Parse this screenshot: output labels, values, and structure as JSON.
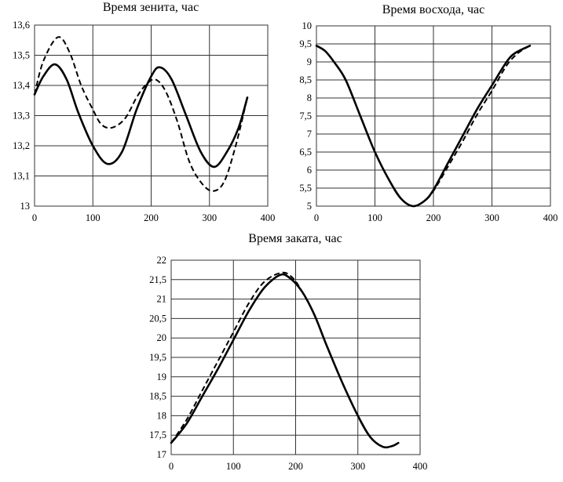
{
  "chart_data": [
    {
      "type": "line",
      "title": "Время зенита, час",
      "xlabel": "",
      "ylabel": "",
      "xlim": [
        0,
        400
      ],
      "ylim": [
        13,
        13.6
      ],
      "xticks": [
        "0",
        "100",
        "200",
        "300",
        "400"
      ],
      "yticks": [
        "13",
        "13,1",
        "13,2",
        "13,3",
        "13,4",
        "13,5",
        "13,6"
      ],
      "grid": true,
      "series": [
        {
          "name": "solid",
          "style": "solid",
          "x": [
            0,
            15,
            35,
            55,
            75,
            100,
            125,
            150,
            175,
            200,
            215,
            235,
            260,
            285,
            308,
            330,
            350,
            365
          ],
          "y": [
            13.37,
            13.43,
            13.47,
            13.42,
            13.31,
            13.2,
            13.14,
            13.18,
            13.32,
            13.43,
            13.46,
            13.42,
            13.3,
            13.18,
            13.13,
            13.18,
            13.26,
            13.36
          ]
        },
        {
          "name": "dashed",
          "style": "dashed",
          "x": [
            0,
            15,
            40,
            60,
            80,
            100,
            115,
            133,
            155,
            175,
            190,
            207,
            225,
            245,
            265,
            285,
            305,
            325,
            345,
            365
          ],
          "y": [
            13.37,
            13.48,
            13.56,
            13.51,
            13.4,
            13.32,
            13.27,
            13.26,
            13.29,
            13.36,
            13.4,
            13.42,
            13.38,
            13.28,
            13.15,
            13.08,
            13.05,
            13.08,
            13.2,
            13.36
          ]
        }
      ]
    },
    {
      "type": "line",
      "title": "Время восхода, час",
      "xlabel": "",
      "ylabel": "",
      "xlim": [
        0,
        400
      ],
      "ylim": [
        5,
        10
      ],
      "xticks": [
        "0",
        "100",
        "200",
        "300",
        "400"
      ],
      "yticks": [
        "5",
        "5,5",
        "6",
        "6,5",
        "7",
        "7,5",
        "8",
        "8,5",
        "9",
        "9,5",
        "10"
      ],
      "grid": true,
      "series": [
        {
          "name": "solid",
          "style": "solid",
          "x": [
            0,
            15,
            30,
            50,
            75,
            100,
            125,
            145,
            165,
            185,
            200,
            225,
            250,
            275,
            300,
            325,
            340,
            365
          ],
          "y": [
            9.45,
            9.3,
            9.0,
            8.5,
            7.5,
            6.5,
            5.7,
            5.2,
            5.0,
            5.15,
            5.45,
            6.2,
            6.95,
            7.7,
            8.35,
            9.0,
            9.25,
            9.45
          ]
        },
        {
          "name": "dashed",
          "style": "dashed",
          "x": [
            0,
            15,
            30,
            50,
            75,
            100,
            125,
            145,
            165,
            185,
            200,
            225,
            250,
            275,
            300,
            325,
            345,
            365
          ],
          "y": [
            9.45,
            9.3,
            9.0,
            8.5,
            7.5,
            6.5,
            5.7,
            5.2,
            5.0,
            5.15,
            5.42,
            6.1,
            6.8,
            7.55,
            8.2,
            8.9,
            9.25,
            9.45
          ]
        }
      ]
    },
    {
      "type": "line",
      "title": "Время заката, час",
      "xlabel": "",
      "ylabel": "",
      "xlim": [
        0,
        400
      ],
      "ylim": [
        17,
        22
      ],
      "xticks": [
        "0",
        "100",
        "200",
        "300",
        "400"
      ],
      "yticks": [
        "17",
        "17,5",
        "18",
        "18,5",
        "19",
        "19,5",
        "20",
        "20,5",
        "21",
        "21,5",
        "22"
      ],
      "grid": true,
      "series": [
        {
          "name": "solid",
          "style": "solid",
          "x": [
            0,
            25,
            50,
            75,
            100,
            125,
            150,
            175,
            190,
            210,
            230,
            250,
            275,
            300,
            320,
            340,
            355,
            365
          ],
          "y": [
            17.3,
            17.8,
            18.5,
            19.2,
            19.95,
            20.7,
            21.3,
            21.62,
            21.55,
            21.2,
            20.6,
            19.8,
            18.85,
            18.0,
            17.45,
            17.2,
            17.22,
            17.3
          ]
        },
        {
          "name": "dashed",
          "style": "dashed",
          "x": [
            0,
            25,
            50,
            75,
            100,
            125,
            150,
            178,
            195,
            210,
            230,
            250,
            275,
            300,
            320,
            340,
            355,
            365
          ],
          "y": [
            17.3,
            17.9,
            18.65,
            19.4,
            20.15,
            20.9,
            21.45,
            21.68,
            21.55,
            21.2,
            20.6,
            19.8,
            18.85,
            18.0,
            17.45,
            17.2,
            17.22,
            17.3
          ]
        }
      ]
    }
  ]
}
